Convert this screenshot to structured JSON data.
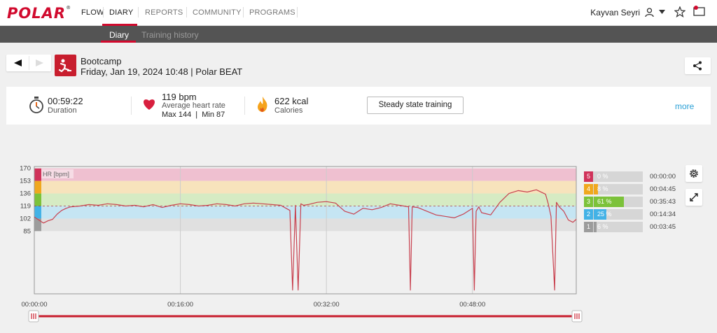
{
  "topnav": {
    "logo": "POLAR",
    "items": [
      "FLOW",
      "DIARY",
      "REPORTS",
      "COMMUNITY",
      "PROGRAMS"
    ],
    "user_name": "Kayvan Seyri",
    "icons": [
      "user-icon",
      "caret-down-icon",
      "star-icon",
      "notification-icon"
    ]
  },
  "subnav": {
    "tabs": [
      "Diary",
      "Training history"
    ]
  },
  "session": {
    "title": "Bootcamp",
    "subtitle": "Friday, Jan 19, 2024 10:48 | Polar BEAT",
    "sport_icon": "bootcamp-icon"
  },
  "summary": {
    "duration_value": "00:59:22",
    "duration_label": "Duration",
    "hr_value": "119 bpm",
    "hr_label": "Average heart rate",
    "hr_minmax": "Max 144  |  Min 87",
    "calories_value": "622 kcal",
    "calories_label": "Calories",
    "training_benefit": "Steady state training",
    "more": "more"
  },
  "chart": {
    "y_ticks": [
      "170",
      "153",
      "136",
      "119",
      "102",
      "85"
    ],
    "x_ticks": [
      "00:00:00",
      "00:16:00",
      "00:32:00",
      "00:48:00"
    ],
    "hr_label": "HR [bpm]",
    "zones": [
      {
        "num": "5",
        "pct": "0 %",
        "time": "00:00:00",
        "color": "#d0335a",
        "band": "#efc0d0",
        "fraction": 0
      },
      {
        "num": "4",
        "pct": "8 %",
        "time": "00:04:45",
        "color": "#f0a81e",
        "band": "#f7e3bc",
        "fraction": 0.08
      },
      {
        "num": "3",
        "pct": "61 %",
        "time": "00:35:43",
        "color": "#7cc23a",
        "band": "#d6ebc3",
        "fraction": 0.61
      },
      {
        "num": "2",
        "pct": "25 %",
        "time": "00:14:34",
        "color": "#43b2e6",
        "band": "#c5e5f3",
        "fraction": 0.25
      },
      {
        "num": "1",
        "pct": "6 %",
        "time": "00:03:45",
        "color": "#9c9c9c",
        "band": "#e0e0e0",
        "fraction": 0.06
      }
    ]
  },
  "chart_data": {
    "type": "line",
    "xlabel": "",
    "ylabel": "HR [bpm]",
    "ylim": [
      0,
      170
    ],
    "x_minutes": [
      0,
      0.5,
      1,
      1.5,
      2,
      2.5,
      3,
      3.5,
      4,
      5,
      6,
      7,
      8,
      9,
      10,
      11,
      12,
      13,
      14,
      15,
      16,
      17,
      18,
      19,
      20,
      21,
      22,
      23,
      24,
      25,
      26,
      27,
      28,
      28.3,
      28.6,
      28.9,
      29.2,
      29.5,
      30,
      31,
      32,
      33,
      34,
      35,
      36,
      37,
      38,
      39,
      40,
      41,
      41.2,
      41.4,
      42,
      43,
      44,
      45,
      46,
      47,
      48,
      48.2,
      48.4,
      48.7,
      49,
      50,
      51,
      52,
      53,
      54,
      55,
      56,
      56.3,
      56.6,
      57,
      57.2,
      57.5,
      58,
      58.5,
      59,
      59.37
    ],
    "y_bpm": [
      104,
      100,
      96,
      99,
      101,
      108,
      113,
      116,
      118,
      119,
      121,
      120,
      122,
      121,
      119,
      120,
      118,
      121,
      117,
      120,
      122,
      121,
      119,
      120,
      122,
      121,
      119,
      122,
      123,
      122,
      121,
      120,
      113,
      5,
      120,
      5,
      122,
      120,
      121,
      124,
      125,
      123,
      112,
      108,
      116,
      114,
      117,
      122,
      120,
      118,
      5,
      118,
      117,
      112,
      107,
      105,
      103,
      108,
      116,
      5,
      112,
      118,
      110,
      107,
      124,
      136,
      140,
      138,
      141,
      135,
      122,
      105,
      5,
      124,
      118,
      112,
      100,
      97,
      101
    ]
  },
  "colors": {
    "brand_red": "#d10a2e",
    "link_blue": "#2ba0d6",
    "hr_line": "#c8414f"
  }
}
